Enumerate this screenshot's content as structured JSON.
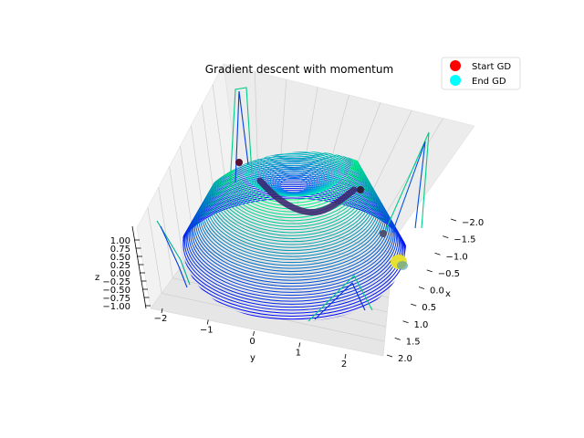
{
  "chart_data": {
    "type": "3d-contour",
    "title": "Gradient descent with momentum",
    "xlabel": "x",
    "ylabel": "y",
    "zlabel": "z",
    "xlim": [
      -2.0,
      2.0
    ],
    "ylim": [
      -2.0,
      2.0
    ],
    "zlim": [
      -1.0,
      1.0
    ],
    "x_ticks": [
      "−2.0",
      "−1.5",
      "−1.0",
      "−0.5",
      "0.0",
      "0.5",
      "1.0",
      "1.5",
      "2.0"
    ],
    "y_ticks": [
      "−2",
      "−1",
      "0",
      "1",
      "2"
    ],
    "z_ticks": [
      "1.00",
      "0.75",
      "0.50",
      "0.25",
      "0.00",
      "−0.25",
      "−0.50",
      "−0.75",
      "−1.00"
    ],
    "colormap": "winter",
    "grid": true,
    "legend_position": "top-right",
    "legend": [
      {
        "label": "Start GD",
        "color": "#ff0000"
      },
      {
        "label": "End GD",
        "color": "#00ffff"
      }
    ],
    "series": [
      {
        "name": "Start GD",
        "color": "#ff0000"
      },
      {
        "name": "End GD",
        "color": "#00ffff"
      }
    ]
  }
}
